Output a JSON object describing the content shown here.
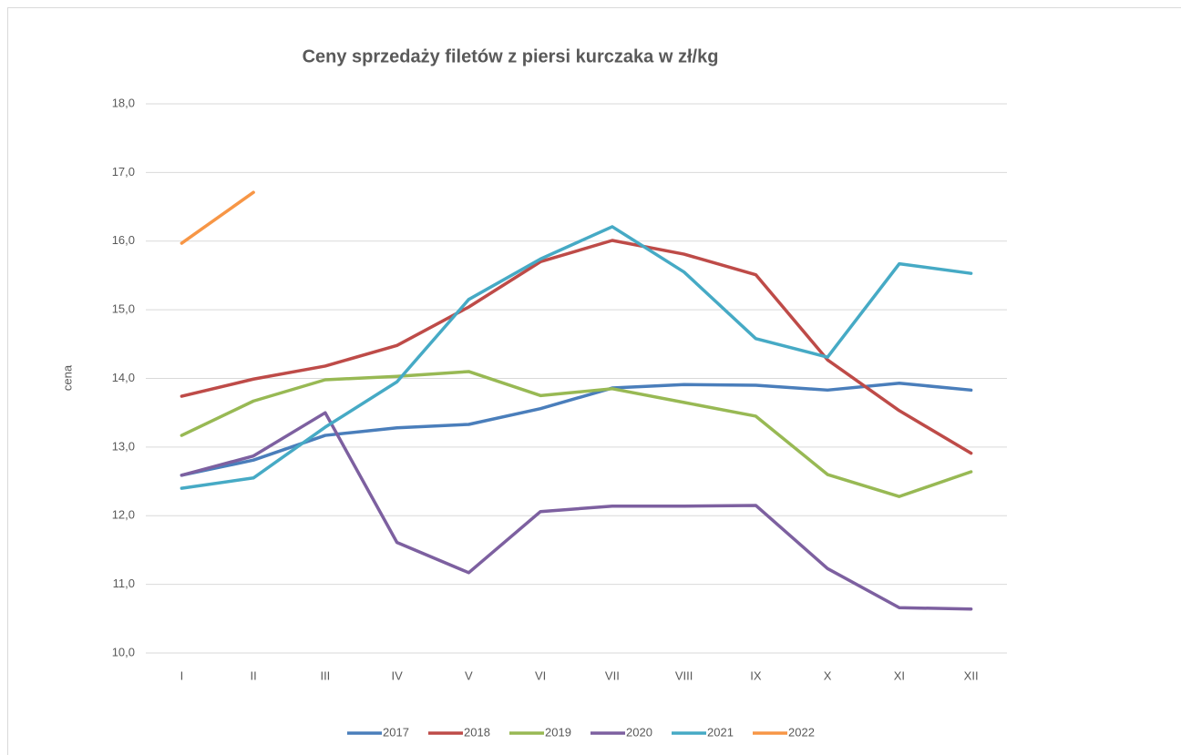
{
  "chart_data": {
    "type": "line",
    "title": "Ceny sprzedaży filetów z piersi kurczaka w zł/kg",
    "y_label": "cena",
    "categories": [
      "I",
      "II",
      "III",
      "IV",
      "V",
      "VI",
      "VII",
      "VIII",
      "IX",
      "X",
      "XI",
      "XII"
    ],
    "series": [
      {
        "name": "2017",
        "color": "#4a7ebb",
        "values": [
          12.59,
          12.81,
          13.17,
          13.28,
          13.33,
          13.56,
          13.86,
          13.91,
          13.9,
          13.83,
          13.93,
          13.83
        ]
      },
      {
        "name": "2018",
        "color": "#be4b48",
        "values": [
          13.74,
          13.99,
          14.18,
          14.48,
          15.04,
          15.7,
          16.01,
          15.81,
          15.51,
          14.27,
          13.53,
          12.91
        ]
      },
      {
        "name": "2019",
        "color": "#98b954",
        "values": [
          13.17,
          13.67,
          13.98,
          14.03,
          14.1,
          13.75,
          13.85,
          13.65,
          13.45,
          12.6,
          12.28,
          12.64
        ]
      },
      {
        "name": "2020",
        "color": "#7d60a0",
        "values": [
          12.59,
          12.87,
          13.5,
          11.61,
          11.17,
          12.06,
          12.14,
          12.14,
          12.15,
          11.23,
          10.66,
          10.64
        ]
      },
      {
        "name": "2021",
        "color": "#46aac5",
        "values": [
          12.4,
          12.55,
          13.29,
          13.95,
          15.15,
          15.74,
          16.21,
          15.55,
          14.58,
          14.31,
          15.67,
          15.53
        ]
      },
      {
        "name": "2022",
        "color": "#f79646",
        "values": [
          15.97,
          16.71,
          null,
          null,
          null,
          null,
          null,
          null,
          null,
          null,
          null,
          null
        ]
      }
    ],
    "ylim": [
      10,
      18
    ],
    "yticks": [
      {
        "value": 10,
        "label": "10,0"
      },
      {
        "value": 11,
        "label": "11,0"
      },
      {
        "value": 12,
        "label": "12,0"
      },
      {
        "value": 13,
        "label": "13,0"
      },
      {
        "value": 14,
        "label": "14,0"
      },
      {
        "value": 15,
        "label": "15,0"
      },
      {
        "value": 16,
        "label": "16,0"
      },
      {
        "value": 17,
        "label": "17,0"
      },
      {
        "value": 18,
        "label": "18,0"
      }
    ],
    "grid": true,
    "legend": "bottom"
  }
}
